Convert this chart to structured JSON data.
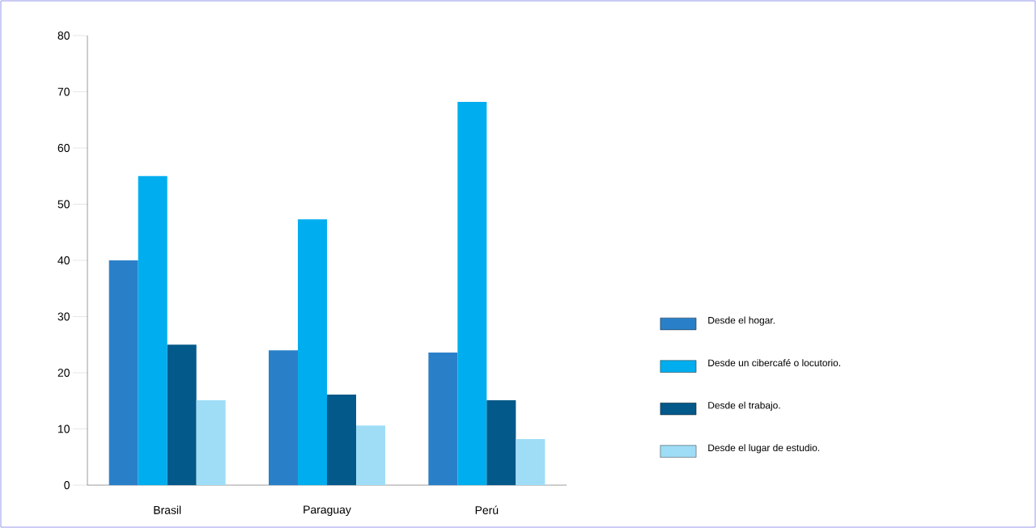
{
  "chart_data": {
    "type": "bar",
    "categories": [
      "Brasil",
      "Paraguay",
      "Perú"
    ],
    "series": [
      {
        "name": "Desde el hogar.",
        "color": "#2a80c8",
        "values": [
          40,
          24,
          23.6
        ]
      },
      {
        "name": "Desde un cibercafé o locutorio.",
        "color": "#00aeef",
        "values": [
          55,
          47.3,
          68.2
        ]
      },
      {
        "name": "Desde el trabajo.",
        "color": "#03598a",
        "values": [
          25,
          16.1,
          15.1
        ]
      },
      {
        "name": "Desde el lugar de estudio.",
        "color": "#9fddf7",
        "values": [
          15.1,
          10.6,
          8.2
        ]
      }
    ],
    "ylim": [
      0,
      80
    ],
    "yticks": [
      0,
      10,
      20,
      30,
      40,
      50,
      60,
      70,
      80
    ],
    "grid": false,
    "legend": "right"
  }
}
